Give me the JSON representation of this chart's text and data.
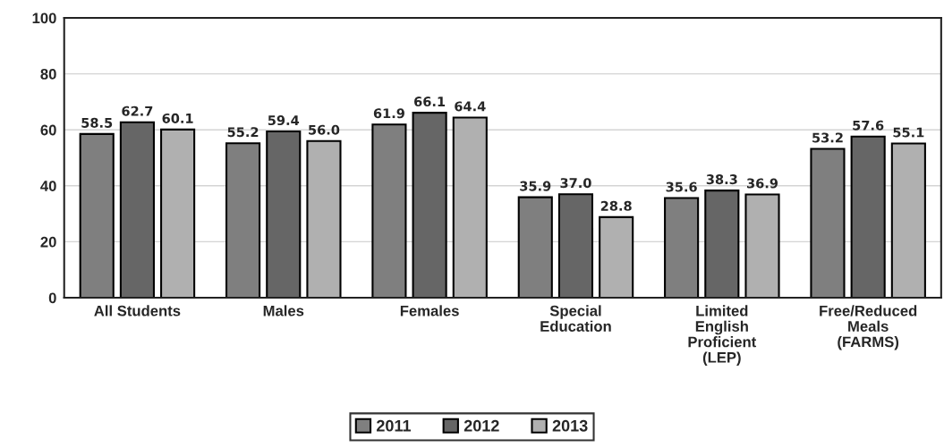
{
  "chart_data": {
    "type": "bar",
    "categories": [
      "All Students",
      "Males",
      "Females",
      "Special\nEducation",
      "Limited\nEnglish\nProficient\n(LEP)",
      "Free/Reduced\nMeals\n(FARMS)"
    ],
    "series": [
      {
        "name": "2011",
        "color": "#7f7f7f",
        "values": [
          58.5,
          55.2,
          61.9,
          35.9,
          35.6,
          53.2
        ],
        "value_labels": [
          "58.5",
          "55.2",
          "61.9",
          "35.9",
          "35.6",
          "53.2"
        ]
      },
      {
        "name": "2012",
        "color": "#666666",
        "values": [
          62.7,
          59.4,
          66.1,
          37.0,
          38.3,
          57.6
        ],
        "value_labels": [
          "62.7",
          "59.4",
          "66.1",
          "37.0",
          "38.3",
          "57.6"
        ]
      },
      {
        "name": "2013",
        "color": "#b0b0b0",
        "values": [
          60.1,
          56.0,
          64.4,
          28.8,
          36.9,
          55.1
        ],
        "value_labels": [
          "60.1",
          "56.0",
          "64.4",
          "28.8",
          "36.9",
          "55.1"
        ]
      }
    ],
    "ylim": [
      0,
      100
    ],
    "yticks": [
      0,
      20,
      40,
      60,
      80,
      100
    ],
    "grid": "y",
    "legend": "bottom"
  }
}
